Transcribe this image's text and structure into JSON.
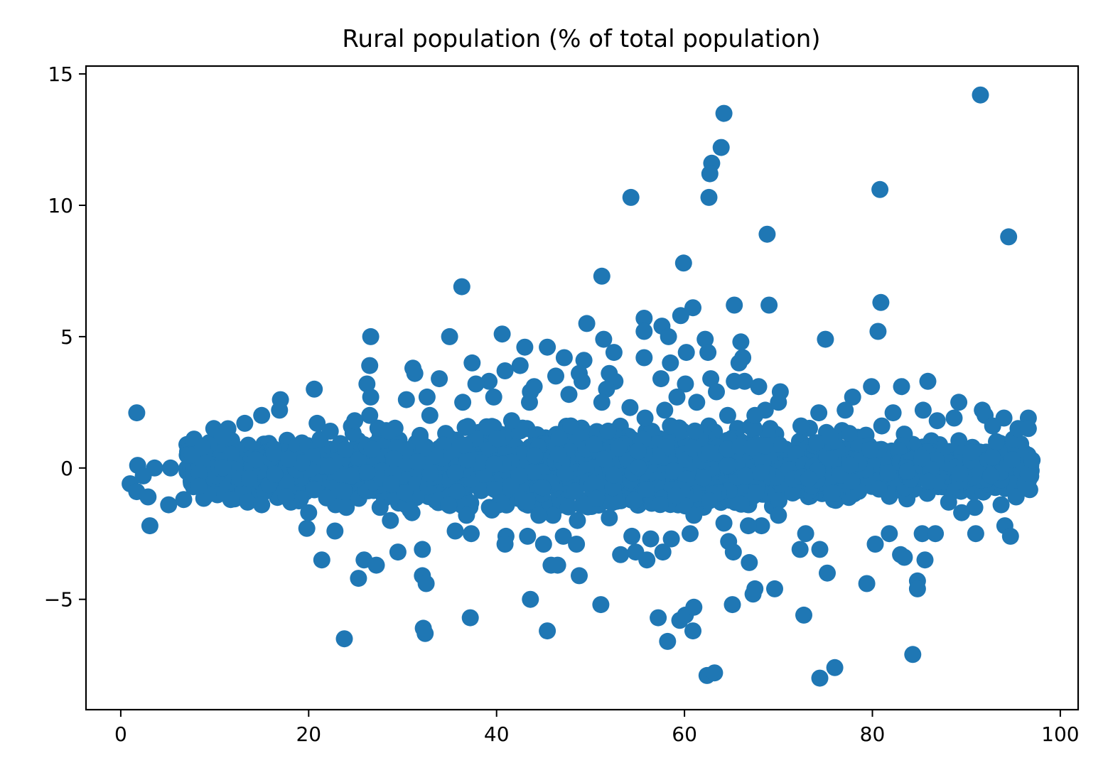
{
  "chart_data": {
    "type": "scatter",
    "title": "Rural population (% of total population)",
    "xlabel": "",
    "ylabel": "",
    "xlim": [
      -3.7,
      101.9
    ],
    "ylim": [
      -9.2,
      15.3
    ],
    "xticks": [
      0,
      20,
      40,
      60,
      80,
      100
    ],
    "yticks": [
      -5,
      0,
      5,
      10,
      15
    ],
    "xtick_labels": [
      "0",
      "20",
      "40",
      "60",
      "80",
      "100"
    ],
    "ytick_labels": [
      "−5",
      "0",
      "5",
      "10",
      "15"
    ],
    "grid": false,
    "marker_color": "#1f77b4",
    "points": [
      [
        91.5,
        14.2
      ],
      [
        64.2,
        13.5
      ],
      [
        63.9,
        12.2
      ],
      [
        62.9,
        11.6
      ],
      [
        62.7,
        11.2
      ],
      [
        62.6,
        10.3
      ],
      [
        54.3,
        10.3
      ],
      [
        80.8,
        10.6
      ],
      [
        68.8,
        8.9
      ],
      [
        94.5,
        8.8
      ],
      [
        59.9,
        7.8
      ],
      [
        51.2,
        7.3
      ],
      [
        36.3,
        6.9
      ],
      [
        65.3,
        6.2
      ],
      [
        69.0,
        6.2
      ],
      [
        60.9,
        6.1
      ],
      [
        80.9,
        6.3
      ],
      [
        55.7,
        5.7
      ],
      [
        59.6,
        5.8
      ],
      [
        49.6,
        5.5
      ],
      [
        57.6,
        5.4
      ],
      [
        55.7,
        5.2
      ],
      [
        58.3,
        5.0
      ],
      [
        40.6,
        5.1
      ],
      [
        35.0,
        5.0
      ],
      [
        26.6,
        5.0
      ],
      [
        80.6,
        5.2
      ],
      [
        62.2,
        4.9
      ],
      [
        51.4,
        4.9
      ],
      [
        66.0,
        4.8
      ],
      [
        75.0,
        4.9
      ],
      [
        43.0,
        4.6
      ],
      [
        45.4,
        4.6
      ],
      [
        60.2,
        4.4
      ],
      [
        62.5,
        4.4
      ],
      [
        52.5,
        4.4
      ],
      [
        55.7,
        4.2
      ],
      [
        47.2,
        4.2
      ],
      [
        49.3,
        4.1
      ],
      [
        66.2,
        4.2
      ],
      [
        65.8,
        4.0
      ],
      [
        58.5,
        4.0
      ],
      [
        37.4,
        4.0
      ],
      [
        42.5,
        3.9
      ],
      [
        26.5,
        3.9
      ],
      [
        31.1,
        3.8
      ],
      [
        31.3,
        3.6
      ],
      [
        40.9,
        3.7
      ],
      [
        46.3,
        3.5
      ],
      [
        52.0,
        3.6
      ],
      [
        48.8,
        3.6
      ],
      [
        33.9,
        3.4
      ],
      [
        49.1,
        3.3
      ],
      [
        52.6,
        3.3
      ],
      [
        39.2,
        3.3
      ],
      [
        57.5,
        3.4
      ],
      [
        62.8,
        3.4
      ],
      [
        65.3,
        3.3
      ],
      [
        66.4,
        3.3
      ],
      [
        85.9,
        3.3
      ],
      [
        26.2,
        3.2
      ],
      [
        37.8,
        3.2
      ],
      [
        60.1,
        3.2
      ],
      [
        67.9,
        3.1
      ],
      [
        83.1,
        3.1
      ],
      [
        79.9,
        3.1
      ],
      [
        51.7,
        3.0
      ],
      [
        43.6,
        2.9
      ],
      [
        20.6,
        3.0
      ],
      [
        44.0,
        3.1
      ],
      [
        70.2,
        2.9
      ],
      [
        63.4,
        2.9
      ],
      [
        47.7,
        2.8
      ],
      [
        39.7,
        2.7
      ],
      [
        59.2,
        2.7
      ],
      [
        26.6,
        2.7
      ],
      [
        32.6,
        2.7
      ],
      [
        30.4,
        2.6
      ],
      [
        77.9,
        2.7
      ],
      [
        89.2,
        2.5
      ],
      [
        17.0,
        2.6
      ],
      [
        36.4,
        2.5
      ],
      [
        43.5,
        2.5
      ],
      [
        61.3,
        2.5
      ],
      [
        51.2,
        2.5
      ],
      [
        70.0,
        2.5
      ],
      [
        57.9,
        2.2
      ],
      [
        54.2,
        2.3
      ],
      [
        91.7,
        2.2
      ],
      [
        85.4,
        2.2
      ],
      [
        1.7,
        2.1
      ],
      [
        16.9,
        2.2
      ],
      [
        68.6,
        2.2
      ],
      [
        74.3,
        2.1
      ],
      [
        82.2,
        2.1
      ],
      [
        77.1,
        2.2
      ],
      [
        92.0,
        2.0
      ],
      [
        15.0,
        2.0
      ],
      [
        26.5,
        2.0
      ],
      [
        32.9,
        2.0
      ],
      [
        55.8,
        1.9
      ],
      [
        64.6,
        2.0
      ],
      [
        67.5,
        2.0
      ],
      [
        94.0,
        1.9
      ],
      [
        96.6,
        1.9
      ],
      [
        88.7,
        1.9
      ],
      [
        86.9,
        1.8
      ],
      [
        41.6,
        1.8
      ],
      [
        24.9,
        1.8
      ],
      [
        20.9,
        1.7
      ],
      [
        13.2,
        1.7
      ],
      [
        72.4,
        1.6
      ],
      [
        81.0,
        1.6
      ],
      [
        58.5,
        1.6
      ],
      [
        9.9,
        1.5
      ],
      [
        22.3,
        1.4
      ],
      [
        28.5,
        1.4
      ],
      [
        47.9,
        1.6
      ],
      [
        10.8,
        1.2
      ],
      [
        7.8,
        1.1
      ],
      [
        93.2,
        1.0
      ],
      [
        95.0,
        1.1
      ],
      [
        1.8,
        0.1
      ],
      [
        3.6,
        0.0
      ],
      [
        5.3,
        0.0
      ],
      [
        2.4,
        -0.3
      ],
      [
        1.0,
        -0.6
      ],
      [
        1.7,
        -0.9
      ],
      [
        2.9,
        -1.1
      ],
      [
        6.7,
        -1.2
      ],
      [
        5.1,
        -1.4
      ],
      [
        3.1,
        -2.2
      ],
      [
        9.3,
        -1.0
      ],
      [
        11.7,
        -1.2
      ],
      [
        13.5,
        -1.3
      ],
      [
        15.0,
        -1.4
      ],
      [
        18.1,
        -1.3
      ],
      [
        20.0,
        -1.7
      ],
      [
        19.8,
        -2.3
      ],
      [
        22.8,
        -2.4
      ],
      [
        21.4,
        -3.5
      ],
      [
        25.3,
        -4.2
      ],
      [
        25.9,
        -3.5
      ],
      [
        27.2,
        -3.7
      ],
      [
        23.8,
        -6.5
      ],
      [
        28.7,
        -2.0
      ],
      [
        29.5,
        -3.2
      ],
      [
        31.0,
        -1.7
      ],
      [
        32.1,
        -3.1
      ],
      [
        32.1,
        -4.1
      ],
      [
        32.5,
        -4.4
      ],
      [
        32.2,
        -6.1
      ],
      [
        32.4,
        -6.3
      ],
      [
        35.6,
        -2.4
      ],
      [
        37.3,
        -2.5
      ],
      [
        37.2,
        -5.7
      ],
      [
        39.5,
        -1.6
      ],
      [
        41.0,
        -2.6
      ],
      [
        40.9,
        -2.9
      ],
      [
        43.3,
        -2.6
      ],
      [
        43.6,
        -5.0
      ],
      [
        45.4,
        -6.2
      ],
      [
        45.0,
        -2.9
      ],
      [
        45.8,
        -3.7
      ],
      [
        46.5,
        -3.7
      ],
      [
        47.1,
        -2.6
      ],
      [
        48.5,
        -2.9
      ],
      [
        48.8,
        -4.1
      ],
      [
        51.1,
        -5.2
      ],
      [
        53.2,
        -3.3
      ],
      [
        54.4,
        -2.6
      ],
      [
        54.8,
        -3.2
      ],
      [
        56.0,
        -3.5
      ],
      [
        56.4,
        -2.7
      ],
      [
        57.2,
        -5.7
      ],
      [
        57.7,
        -3.2
      ],
      [
        58.2,
        -6.6
      ],
      [
        58.6,
        -2.7
      ],
      [
        59.5,
        -5.8
      ],
      [
        60.1,
        -5.6
      ],
      [
        60.6,
        -2.5
      ],
      [
        60.9,
        -6.2
      ],
      [
        61.0,
        -5.3
      ],
      [
        62.4,
        -7.9
      ],
      [
        63.2,
        -7.8
      ],
      [
        64.7,
        -2.8
      ],
      [
        65.1,
        -5.2
      ],
      [
        65.2,
        -3.2
      ],
      [
        66.9,
        -3.6
      ],
      [
        67.3,
        -4.8
      ],
      [
        67.5,
        -4.6
      ],
      [
        69.6,
        -4.6
      ],
      [
        72.3,
        -3.1
      ],
      [
        72.7,
        -5.6
      ],
      [
        72.9,
        -2.5
      ],
      [
        74.4,
        -3.1
      ],
      [
        74.4,
        -8.0
      ],
      [
        75.2,
        -4.0
      ],
      [
        76.0,
        -7.6
      ],
      [
        79.4,
        -4.4
      ],
      [
        80.3,
        -2.9
      ],
      [
        81.8,
        -2.5
      ],
      [
        83.0,
        -3.3
      ],
      [
        83.4,
        -3.4
      ],
      [
        84.3,
        -7.1
      ],
      [
        84.8,
        -4.3
      ],
      [
        84.8,
        -4.6
      ],
      [
        85.6,
        -3.5
      ],
      [
        85.3,
        -2.5
      ],
      [
        86.7,
        -2.5
      ],
      [
        91.0,
        -2.5
      ],
      [
        94.1,
        -2.2
      ],
      [
        94.7,
        -2.6
      ],
      [
        95.3,
        -1.1
      ],
      [
        96.6,
        -0.2
      ],
      [
        97.0,
        0.3
      ],
      [
        93.7,
        -1.4
      ],
      [
        90.9,
        -1.5
      ],
      [
        89.5,
        -1.7
      ],
      [
        95.5,
        1.5
      ],
      [
        96.6,
        1.5
      ],
      [
        92.8,
        1.6
      ],
      [
        70.0,
        -1.8
      ],
      [
        68.2,
        -2.2
      ],
      [
        66.8,
        -2.2
      ],
      [
        64.2,
        -2.1
      ],
      [
        61.0,
        -1.8
      ],
      [
        52.0,
        -1.9
      ],
      [
        48.6,
        -2.0
      ],
      [
        46.0,
        -1.8
      ],
      [
        44.5,
        -1.8
      ],
      [
        36.8,
        -1.8
      ],
      [
        34.9,
        -1.4
      ],
      [
        30.8,
        -1.6
      ],
      [
        27.6,
        -1.5
      ],
      [
        24.0,
        -1.5
      ],
      [
        17.6,
        -1.1
      ],
      [
        8.3,
        -0.7
      ],
      [
        7.6,
        0.5
      ],
      [
        8.7,
        0.8
      ]
    ],
    "cluster_count": 2300
  }
}
